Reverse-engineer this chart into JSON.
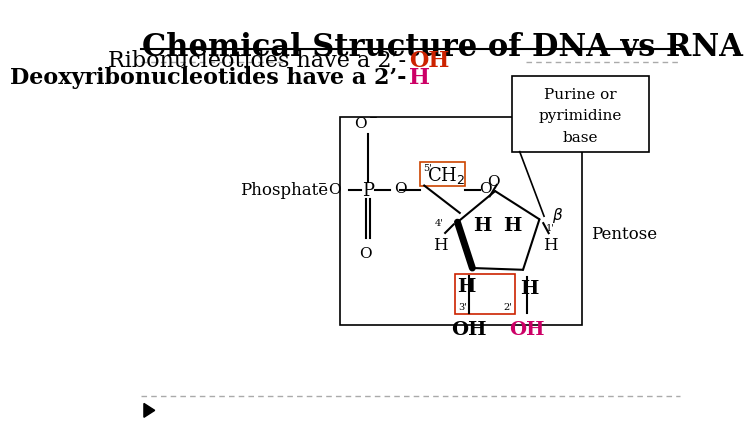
{
  "title": "Chemical Structure of DNA vs RNA",
  "subtitle1_plain": "Ribonucleotides have a 2’-",
  "subtitle1_colored": "OH",
  "subtitle2_plain": "Deoxyribonucleotides have a 2’-",
  "subtitle2_colored": "H",
  "colored_text_color": "#CC2200",
  "subtitle2_colored_color": "#CC0066",
  "bg_color": "#FFFFFF",
  "title_color": "#000000",
  "title_fontsize": 22,
  "subtitle_fontsize": 16,
  "phosphate_label": "Phosphate",
  "pentose_label": "Pentose"
}
